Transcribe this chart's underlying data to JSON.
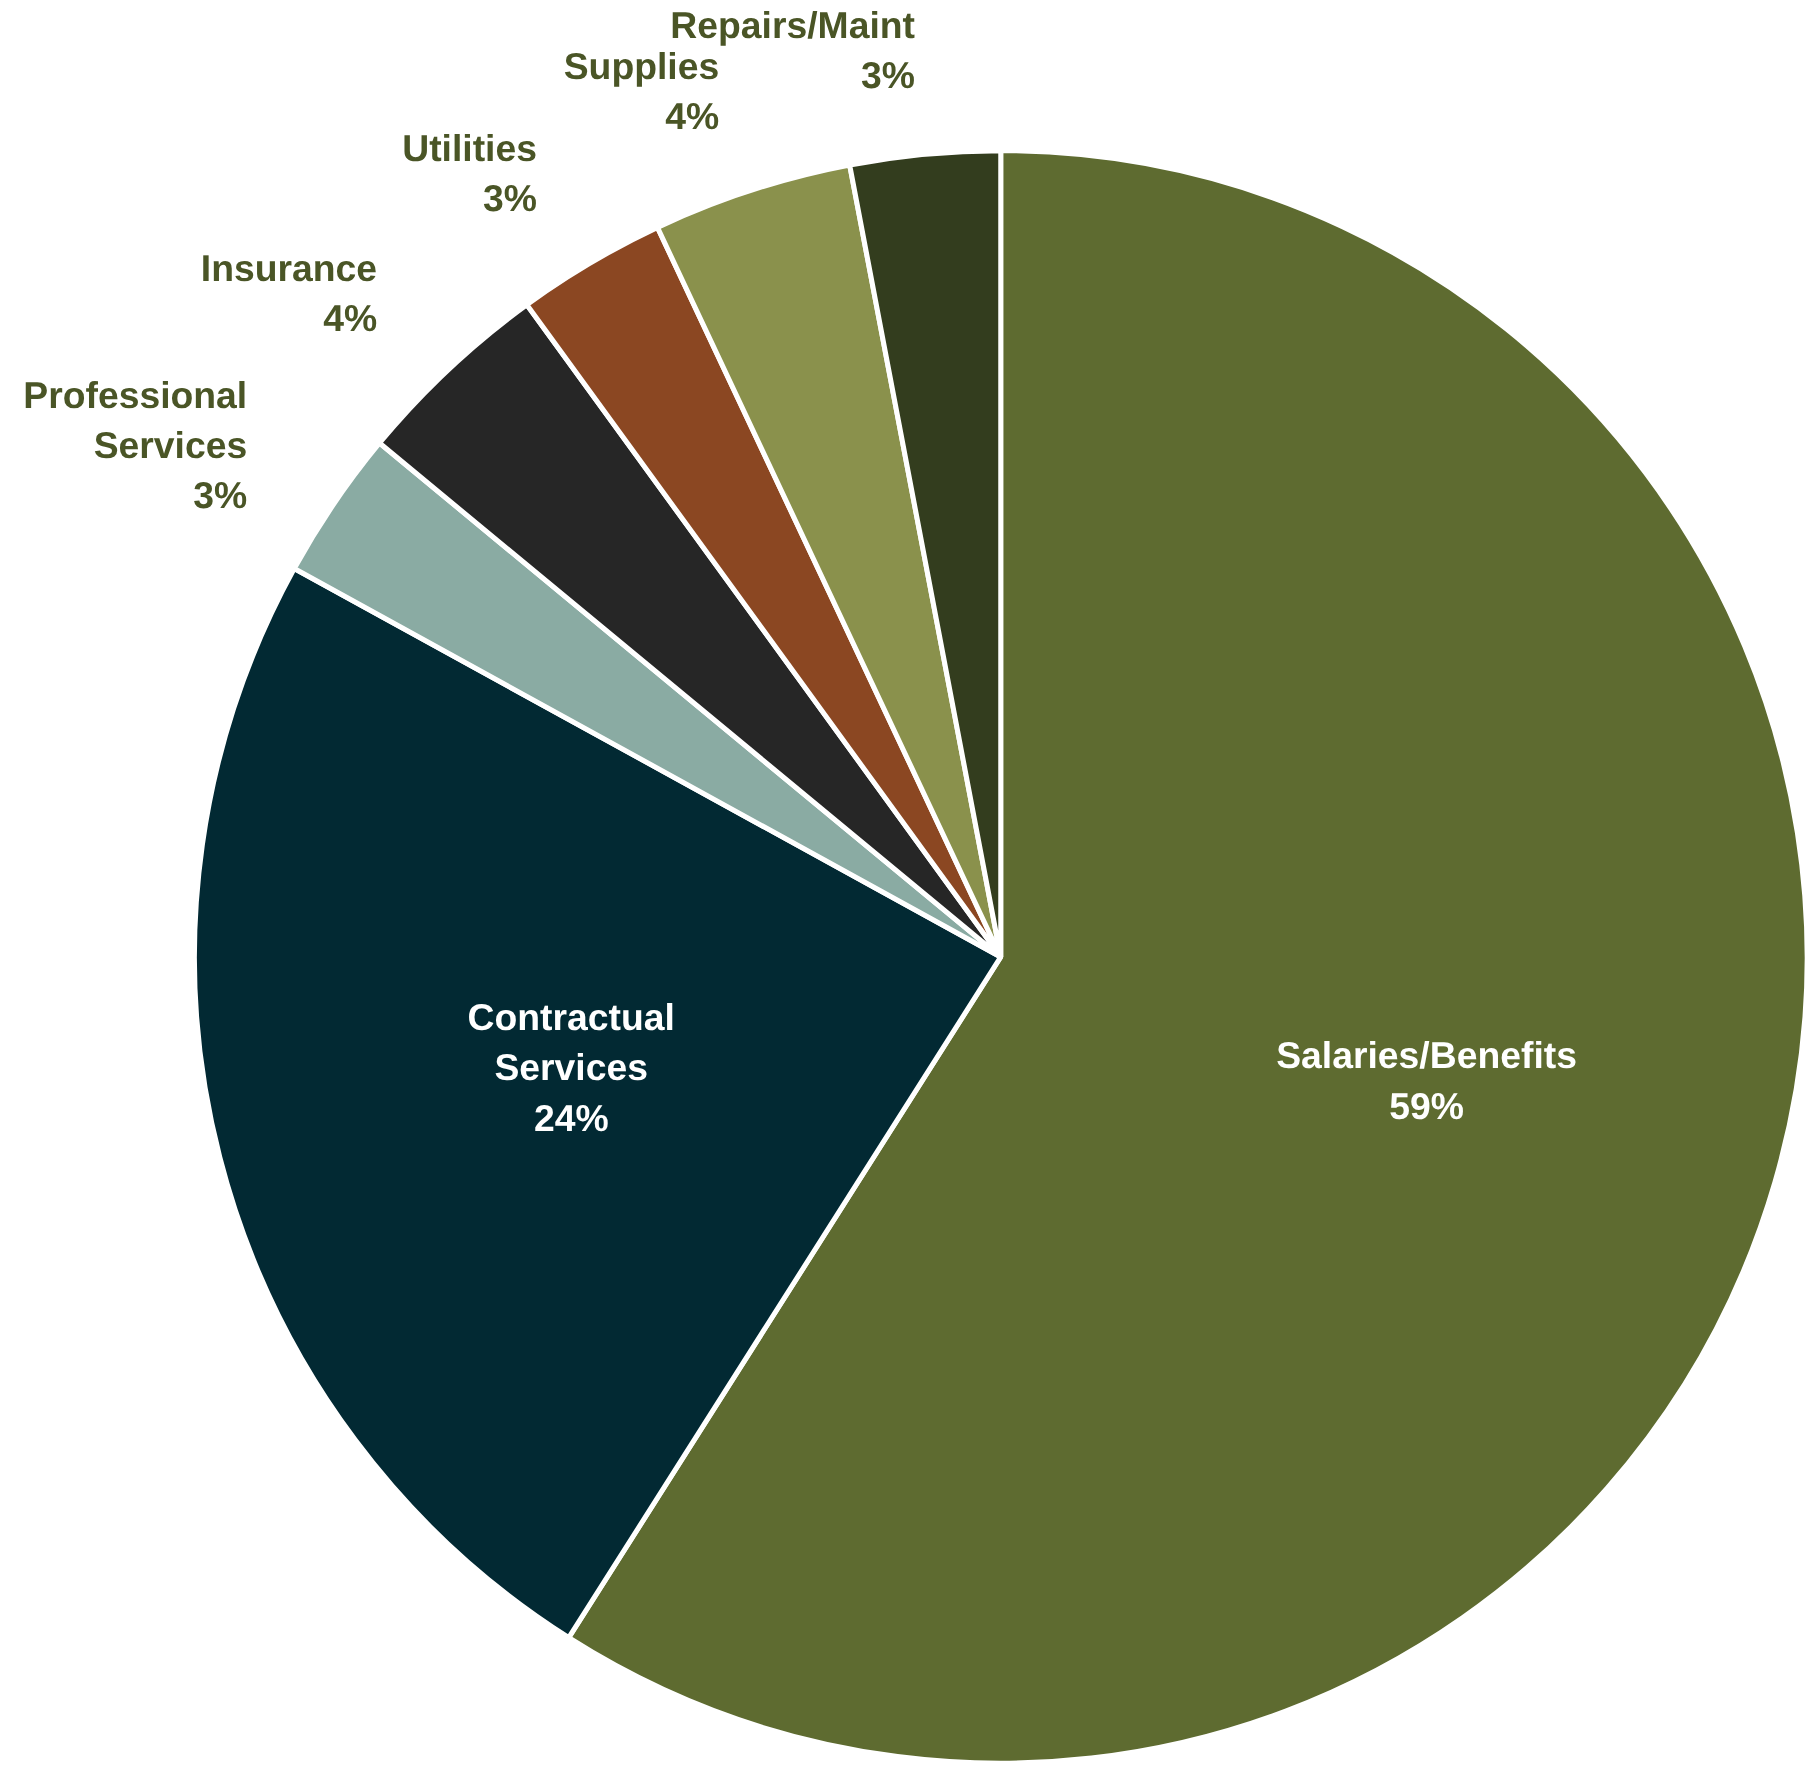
{
  "chart_data": {
    "type": "pie",
    "categories": [
      "Salaries/Benefits",
      "Contractual Services",
      "Professional Services",
      "Insurance",
      "Utilities",
      "Supplies",
      "Repairs/Maint"
    ],
    "values": [
      59,
      24,
      3,
      4,
      3,
      4,
      3
    ],
    "colors": [
      "#5e6b30",
      "#022933",
      "#8aaba3",
      "#262626",
      "#8b4722",
      "#8a914c",
      "#333d1e"
    ],
    "value_labels": [
      "59%",
      "24%",
      "3%",
      "4%",
      "3%",
      "4%",
      "3%"
    ]
  }
}
